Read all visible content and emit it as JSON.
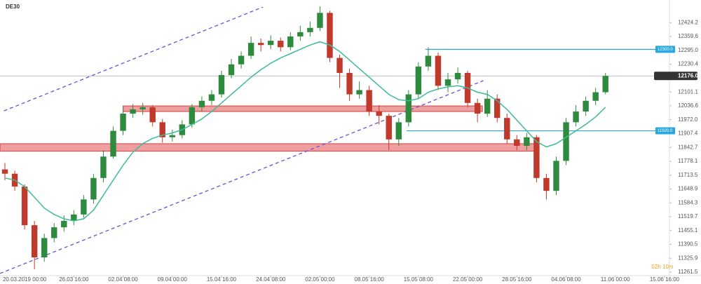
{
  "chart_data": {
    "type": "candlestick",
    "title": "DE30",
    "ylim": [
      11245,
      12530
    ],
    "yticks": [
      {
        "value": 12424.2,
        "label": "12424.2"
      },
      {
        "value": 12359.6,
        "label": "12359.6"
      },
      {
        "value": 12295,
        "label": "12295.0"
      },
      {
        "value": 12230.4,
        "label": "12230.4"
      },
      {
        "value": 12101.1,
        "label": "12101.1"
      },
      {
        "value": 12036.6,
        "label": "12036.6"
      },
      {
        "value": 11972,
        "label": "11972.0"
      },
      {
        "value": 11907.4,
        "label": "11907.4"
      },
      {
        "value": 11842.7,
        "label": "11842.7"
      },
      {
        "value": 11778.1,
        "label": "11778.1"
      },
      {
        "value": 11713.5,
        "label": "11713.5"
      },
      {
        "value": 11648.9,
        "label": "11648.9"
      },
      {
        "value": 11584.3,
        "label": "11584.3"
      },
      {
        "value": 11519.7,
        "label": "11519.7"
      },
      {
        "value": 11455.1,
        "label": "11455.1"
      },
      {
        "value": 11390.5,
        "label": "11390.5"
      },
      {
        "value": 11325.9,
        "label": "11325.9"
      },
      {
        "value": 11261.5,
        "label": "11261.5"
      }
    ],
    "xlim": [
      -0.5,
      67.5
    ],
    "xticks": [
      {
        "value": 2,
        "label": "20.03.2019 00:00"
      },
      {
        "value": 7,
        "label": "26.03 16:00"
      },
      {
        "value": 12,
        "label": "02.04 08:00"
      },
      {
        "value": 17,
        "label": "09.04 00:00"
      },
      {
        "value": 22,
        "label": "15.04 16:00"
      },
      {
        "value": 27,
        "label": "24.04 08:00"
      },
      {
        "value": 32,
        "label": "02.05 00:00"
      },
      {
        "value": 37,
        "label": "08.05 16:00"
      },
      {
        "value": 42,
        "label": "15.05 08:00"
      },
      {
        "value": 47,
        "label": "22.05 00:00"
      },
      {
        "value": 52,
        "label": "28.05 16:00"
      },
      {
        "value": 57,
        "label": "04.06 08:00"
      },
      {
        "value": 62,
        "label": "11.06 00:00"
      },
      {
        "value": 67,
        "label": "15.06 16:00"
      }
    ],
    "up_color": "#2e8b3e",
    "down_color": "#c0392b",
    "ma_color": "#3dbb9a",
    "candles": {
      "open": [
        11740,
        11720,
        11660,
        11480,
        11330,
        11420,
        11470,
        11500,
        11530,
        11600,
        11700,
        11800,
        11920,
        12000,
        12020,
        12030,
        11960,
        11890,
        11900,
        11950,
        12030,
        12060,
        12090,
        12180,
        12230,
        12270,
        12330,
        12320,
        12340,
        12310,
        12360,
        12380,
        12400,
        12470,
        12260,
        12190,
        12090,
        12110,
        12010,
        11990,
        11880,
        11960,
        12090,
        12220,
        12270,
        12130,
        12160,
        12190,
        12050,
        12000,
        12070,
        11980,
        11880,
        11850,
        11890,
        11700,
        11640,
        11780,
        11960,
        12010,
        12060,
        12100
      ],
      "high": [
        11770,
        11735,
        11670,
        11500,
        11440,
        11490,
        11525,
        11550,
        11620,
        11720,
        11830,
        11940,
        12030,
        12045,
        12050,
        12040,
        11975,
        11925,
        11970,
        12045,
        12080,
        12110,
        12200,
        12255,
        12290,
        12360,
        12350,
        12365,
        12355,
        12380,
        12410,
        12430,
        12500,
        12480,
        12275,
        12210,
        12150,
        12130,
        12040,
        12000,
        11980,
        12110,
        12240,
        12310,
        12285,
        12190,
        12215,
        12200,
        12070,
        12110,
        12090,
        12000,
        11900,
        11910,
        11900,
        11720,
        11800,
        11980,
        12040,
        12080,
        12120,
        12190
      ],
      "low": [
        11690,
        11640,
        11460,
        11275,
        11310,
        11400,
        11450,
        11480,
        11515,
        11580,
        11680,
        11790,
        11900,
        11980,
        11995,
        11940,
        11865,
        11870,
        11885,
        11935,
        12010,
        12040,
        12075,
        12165,
        12210,
        12255,
        12290,
        12300,
        12290,
        12295,
        12340,
        12360,
        12385,
        12240,
        12120,
        12060,
        12070,
        11990,
        11950,
        11830,
        11850,
        11940,
        12070,
        12200,
        12110,
        12100,
        12140,
        12030,
        11960,
        11985,
        11960,
        11860,
        11830,
        11830,
        11680,
        11600,
        11620,
        11760,
        11940,
        11990,
        12040,
        12090
      ],
      "close": [
        11720,
        11660,
        11480,
        11330,
        11420,
        11470,
        11500,
        11530,
        11600,
        11700,
        11800,
        11920,
        12000,
        12020,
        12030,
        11960,
        11890,
        11900,
        11950,
        12030,
        12060,
        12090,
        12180,
        12230,
        12270,
        12330,
        12320,
        12340,
        12310,
        12360,
        12380,
        12400,
        12470,
        12260,
        12190,
        12090,
        12110,
        12010,
        11990,
        11880,
        11960,
        12090,
        12220,
        12270,
        12130,
        12160,
        12190,
        12050,
        12000,
        12070,
        11980,
        11880,
        11850,
        11890,
        11700,
        11640,
        11780,
        11960,
        12010,
        12060,
        12100,
        12176
      ]
    },
    "ma": [
      11700,
      11690,
      11660,
      11610,
      11560,
      11530,
      11510,
      11500,
      11510,
      11550,
      11620,
      11690,
      11760,
      11820,
      11860,
      11885,
      11900,
      11910,
      11925,
      11950,
      11975,
      12010,
      12050,
      12090,
      12130,
      12170,
      12205,
      12235,
      12260,
      12280,
      12300,
      12320,
      12335,
      12320,
      12290,
      12250,
      12210,
      12170,
      12130,
      12090,
      12065,
      12060,
      12070,
      12100,
      12115,
      12125,
      12130,
      12120,
      12100,
      12090,
      12060,
      12020,
      11970,
      11920,
      11870,
      11845,
      11860,
      11890,
      11920,
      11950,
      11985,
      12030
    ],
    "zones": [
      {
        "low": 12010,
        "high": 12036,
        "start": 12,
        "end": 48.5
      },
      {
        "low": 11825,
        "high": 11860,
        "start": -0.5,
        "end": 53.8
      }
    ],
    "levels": [
      {
        "value": 12300,
        "label": "12300.0",
        "start": 42.7
      },
      {
        "value": 11920,
        "label": "11920.0",
        "start": 40.8
      }
    ],
    "channels": [
      {
        "x0": -0.1,
        "y0": 12013,
        "x1": 26.2,
        "y1": 12497
      },
      {
        "x0": -0.5,
        "y0": 11255,
        "x1": 48.6,
        "y1": 12154
      }
    ],
    "current": {
      "value": 12176,
      "label": "12176.0"
    },
    "timer": "02h 10m"
  }
}
